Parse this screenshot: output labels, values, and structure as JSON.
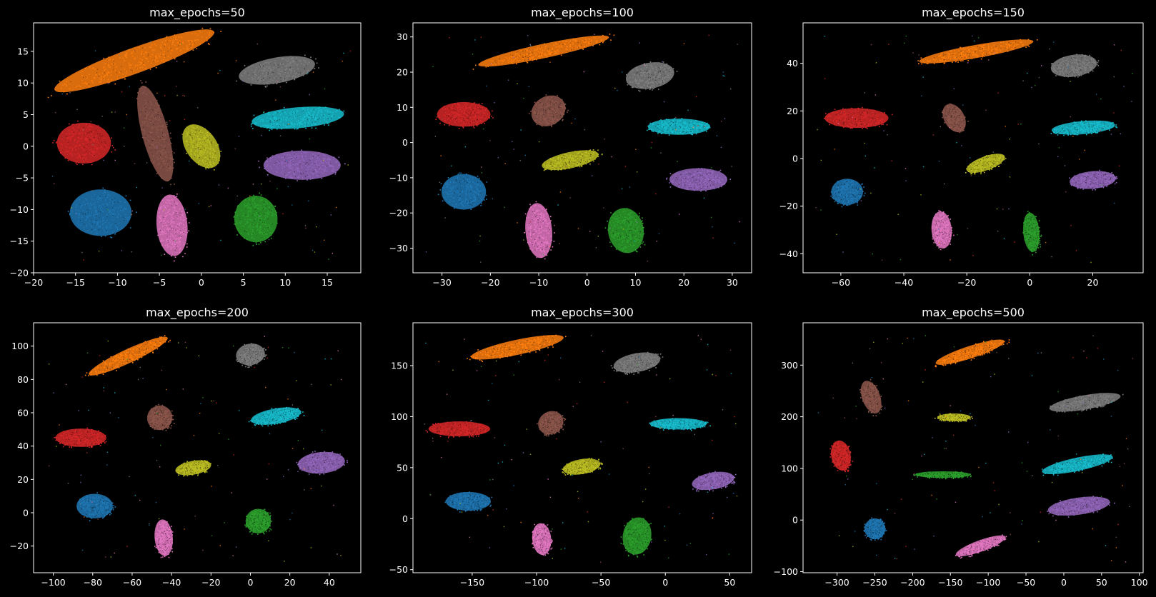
{
  "chart_data": [
    {
      "type": "scatter",
      "title": "max_epochs=50",
      "xlim": [
        -20,
        19
      ],
      "ylim": [
        -20,
        19.5
      ],
      "xticks": [
        -20,
        -15,
        -10,
        -5,
        0,
        5,
        10,
        15
      ],
      "yticks": [
        -20,
        -15,
        -10,
        -5,
        0,
        5,
        10,
        15
      ],
      "clusters": [
        {
          "color": "orange",
          "x": -8,
          "y": 13.5,
          "rx": 11,
          "ry": 2.2,
          "rot": 20
        },
        {
          "color": "gray",
          "x": 9,
          "y": 12,
          "rx": 5,
          "ry": 2.2,
          "rot": 10
        },
        {
          "color": "cyan",
          "x": 11.5,
          "y": 4.5,
          "rx": 6,
          "ry": 1.8,
          "rot": 5
        },
        {
          "color": "brown",
          "x": -5.5,
          "y": 2,
          "rx": 1.7,
          "ry": 8.5,
          "rot": 15
        },
        {
          "color": "red",
          "x": -14,
          "y": 0.5,
          "rx": 3.5,
          "ry": 3.5,
          "rot": 0
        },
        {
          "color": "olive",
          "x": 0,
          "y": 0,
          "rx": 2,
          "ry": 4.2,
          "rot": 35
        },
        {
          "color": "purple",
          "x": 12,
          "y": -3,
          "rx": 5,
          "ry": 2.5,
          "rot": 0
        },
        {
          "color": "blue",
          "x": -12,
          "y": -10.5,
          "rx": 4,
          "ry": 4,
          "rot": 0
        },
        {
          "color": "pink",
          "x": -3.5,
          "y": -12.5,
          "rx": 2,
          "ry": 5.3,
          "rot": 5
        },
        {
          "color": "green",
          "x": 6.5,
          "y": -11.5,
          "rx": 2.8,
          "ry": 4,
          "rot": 5
        }
      ]
    },
    {
      "type": "scatter",
      "title": "max_epochs=100",
      "xlim": [
        -36,
        34
      ],
      "ylim": [
        -37,
        34
      ],
      "xticks": [
        -30,
        -20,
        -10,
        0,
        10,
        20,
        30
      ],
      "yticks": [
        -30,
        -20,
        -10,
        0,
        10,
        20,
        30
      ],
      "clusters": [
        {
          "color": "orange",
          "x": -9,
          "y": 26,
          "rx": 15,
          "ry": 2.2,
          "rot": 12
        },
        {
          "color": "gray",
          "x": 13,
          "y": 19,
          "rx": 5.5,
          "ry": 4,
          "rot": 10
        },
        {
          "color": "red",
          "x": -25.5,
          "y": 8,
          "rx": 6,
          "ry": 3.8,
          "rot": 0
        },
        {
          "color": "brown",
          "x": -8,
          "y": 9,
          "rx": 4,
          "ry": 4.5,
          "rot": 30
        },
        {
          "color": "cyan",
          "x": 19,
          "y": 4.5,
          "rx": 7,
          "ry": 2.5,
          "rot": 0
        },
        {
          "color": "olive",
          "x": -3.5,
          "y": -5,
          "rx": 6.5,
          "ry": 2.5,
          "rot": 12
        },
        {
          "color": "purple",
          "x": 23,
          "y": -10.5,
          "rx": 6.5,
          "ry": 3.5,
          "rot": 0
        },
        {
          "color": "blue",
          "x": -25.5,
          "y": -14,
          "rx": 5,
          "ry": 5.5,
          "rot": 0
        },
        {
          "color": "pink",
          "x": -10,
          "y": -25,
          "rx": 3,
          "ry": 8.5,
          "rot": 5
        },
        {
          "color": "green",
          "x": 8,
          "y": -25,
          "rx": 4,
          "ry": 7,
          "rot": 10
        }
      ]
    },
    {
      "type": "scatter",
      "title": "max_epochs=150",
      "xlim": [
        -72,
        36
      ],
      "ylim": [
        -48,
        57
      ],
      "xticks": [
        -60,
        -40,
        -20,
        0,
        20
      ],
      "yticks": [
        -40,
        -20,
        0,
        20,
        40
      ],
      "clusters": [
        {
          "color": "orange",
          "x": -17,
          "y": 45,
          "rx": 20,
          "ry": 3,
          "rot": 10
        },
        {
          "color": "gray",
          "x": 14,
          "y": 39,
          "rx": 8,
          "ry": 5,
          "rot": 8
        },
        {
          "color": "red",
          "x": -55,
          "y": 17,
          "rx": 11,
          "ry": 4.5,
          "rot": 0
        },
        {
          "color": "brown",
          "x": -24,
          "y": 17,
          "rx": 3.5,
          "ry": 7,
          "rot": 30
        },
        {
          "color": "cyan",
          "x": 17,
          "y": 13,
          "rx": 11,
          "ry": 3,
          "rot": 5
        },
        {
          "color": "olive",
          "x": -14,
          "y": -2,
          "rx": 7,
          "ry": 3.2,
          "rot": 20
        },
        {
          "color": "purple",
          "x": 20,
          "y": -9,
          "rx": 8,
          "ry": 4,
          "rot": 5
        },
        {
          "color": "blue",
          "x": -58,
          "y": -14,
          "rx": 5.5,
          "ry": 6,
          "rot": 0
        },
        {
          "color": "pink",
          "x": -28,
          "y": -30,
          "rx": 3.5,
          "ry": 8.5,
          "rot": 5
        },
        {
          "color": "green",
          "x": 0.5,
          "y": -31,
          "rx": 2.8,
          "ry": 9,
          "rot": 5
        }
      ]
    },
    {
      "type": "scatter",
      "title": "max_epochs=200",
      "xlim": [
        -110,
        56
      ],
      "ylim": [
        -36,
        114
      ],
      "xticks": [
        -100,
        -80,
        -60,
        -40,
        -20,
        0,
        20,
        40
      ],
      "yticks": [
        -20,
        0,
        20,
        40,
        60,
        80,
        100
      ],
      "clusters": [
        {
          "color": "orange",
          "x": -62,
          "y": 94,
          "rx": 24,
          "ry": 4.5,
          "rot": 25
        },
        {
          "color": "gray",
          "x": 0,
          "y": 95,
          "rx": 8,
          "ry": 7,
          "rot": 10
        },
        {
          "color": "red",
          "x": -86,
          "y": 45,
          "rx": 14,
          "ry": 6,
          "rot": 0
        },
        {
          "color": "brown",
          "x": -46,
          "y": 57,
          "rx": 7,
          "ry": 8,
          "rot": 20
        },
        {
          "color": "cyan",
          "x": 13,
          "y": 58,
          "rx": 14,
          "ry": 5,
          "rot": 10
        },
        {
          "color": "olive",
          "x": -29,
          "y": 27,
          "rx": 10,
          "ry": 4.5,
          "rot": 10
        },
        {
          "color": "purple",
          "x": 36,
          "y": 30,
          "rx": 13,
          "ry": 7,
          "rot": 5
        },
        {
          "color": "blue",
          "x": -79,
          "y": 4,
          "rx": 10,
          "ry": 8,
          "rot": 0
        },
        {
          "color": "pink",
          "x": -44,
          "y": -15,
          "rx": 5,
          "ry": 12,
          "rot": 5
        },
        {
          "color": "green",
          "x": 4,
          "y": -5,
          "rx": 7,
          "ry": 8,
          "rot": 0
        }
      ]
    },
    {
      "type": "scatter",
      "title": "max_epochs=300",
      "xlim": [
        -196,
        67
      ],
      "ylim": [
        -53,
        192
      ],
      "xticks": [
        -150,
        -100,
        -50,
        0,
        50
      ],
      "yticks": [
        -50,
        0,
        50,
        100,
        150
      ],
      "clusters": [
        {
          "color": "orange",
          "x": -115,
          "y": 168,
          "rx": 40,
          "ry": 8,
          "rot": 12
        },
        {
          "color": "gray",
          "x": -22,
          "y": 153,
          "rx": 20,
          "ry": 10,
          "rot": 10
        },
        {
          "color": "red",
          "x": -160,
          "y": 88,
          "rx": 26,
          "ry": 8,
          "rot": 0
        },
        {
          "color": "brown",
          "x": -89,
          "y": 94,
          "rx": 11,
          "ry": 12,
          "rot": 30
        },
        {
          "color": "cyan",
          "x": 10,
          "y": 93,
          "rx": 24,
          "ry": 6,
          "rot": 0
        },
        {
          "color": "olive",
          "x": -65,
          "y": 51,
          "rx": 16,
          "ry": 8,
          "rot": 10
        },
        {
          "color": "purple",
          "x": 37,
          "y": 37,
          "rx": 18,
          "ry": 9,
          "rot": 10
        },
        {
          "color": "blue",
          "x": -153,
          "y": 17,
          "rx": 19,
          "ry": 10,
          "rot": 0
        },
        {
          "color": "pink",
          "x": -96,
          "y": -20,
          "rx": 8,
          "ry": 17,
          "rot": 5
        },
        {
          "color": "green",
          "x": -22,
          "y": -17,
          "rx": 12,
          "ry": 20,
          "rot": -10
        }
      ]
    },
    {
      "type": "scatter",
      "title": "max_epochs=500",
      "xlim": [
        -345,
        105
      ],
      "ylim": [
        -102,
        382
      ],
      "xticks": [
        -300,
        -250,
        -200,
        -150,
        -100,
        -50,
        0,
        50,
        100
      ],
      "yticks": [
        -100,
        0,
        100,
        200,
        300
      ],
      "clusters": [
        {
          "color": "orange",
          "x": -124,
          "y": 325,
          "rx": 52,
          "ry": 13,
          "rot": 18
        },
        {
          "color": "brown",
          "x": -255,
          "y": 238,
          "rx": 13,
          "ry": 36,
          "rot": 20
        },
        {
          "color": "gray",
          "x": 28,
          "y": 228,
          "rx": 52,
          "ry": 15,
          "rot": 10
        },
        {
          "color": "olive",
          "x": -145,
          "y": 199,
          "rx": 24,
          "ry": 8,
          "rot": 0
        },
        {
          "color": "red",
          "x": -295,
          "y": 125,
          "rx": 14,
          "ry": 32,
          "rot": 10
        },
        {
          "color": "cyan",
          "x": 18,
          "y": 108,
          "rx": 52,
          "ry": 14,
          "rot": 12
        },
        {
          "color": "green",
          "x": -160,
          "y": 88,
          "rx": 40,
          "ry": 7,
          "rot": 0
        },
        {
          "color": "purple",
          "x": 20,
          "y": 27,
          "rx": 45,
          "ry": 18,
          "rot": 8
        },
        {
          "color": "blue",
          "x": -250,
          "y": -17,
          "rx": 15,
          "ry": 22,
          "rot": 20
        },
        {
          "color": "pink",
          "x": -110,
          "y": -50,
          "rx": 38,
          "ry": 12,
          "rot": 20
        }
      ]
    }
  ],
  "colors": {
    "blue": "#1f77b4",
    "orange": "#ff7f0e",
    "green": "#2ca02c",
    "red": "#d62728",
    "purple": "#9467bd",
    "brown": "#8c564b",
    "pink": "#e377c2",
    "gray": "#7f7f7f",
    "olive": "#bcbd22",
    "cyan": "#17becf"
  }
}
